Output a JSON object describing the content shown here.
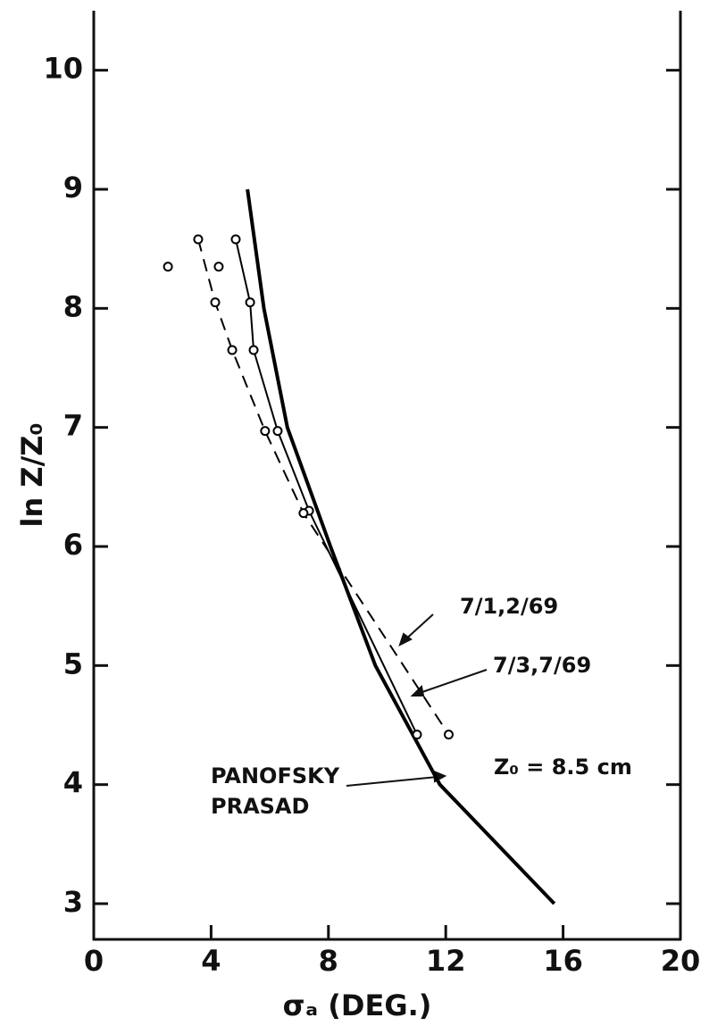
{
  "chart_data": {
    "type": "line",
    "x_label": "σₐ (DEG.)",
    "y_label": "ln Z/Z₀",
    "annotation": "Z₀ = 8.5 cm",
    "xlim": [
      0,
      20
    ],
    "xticks": [
      0,
      4,
      8,
      12,
      16,
      20
    ],
    "ylim": [
      2.7,
      10.5
    ],
    "yticks": [
      3,
      4,
      5,
      6,
      7,
      8,
      9,
      10
    ],
    "grid": false,
    "series": [
      {
        "name": "PANOFSKY PRASAD",
        "color": "#000000",
        "style": "solid-thick",
        "markers": false,
        "x": [
          5.24,
          5.8,
          6.6,
          8.07,
          9.6,
          11.8,
          15.7
        ],
        "values": [
          9,
          8,
          7,
          6,
          5,
          4,
          3
        ]
      },
      {
        "name": "7/3,7/69",
        "color": "#000000",
        "style": "solid",
        "markers": true,
        "x": [
          4.84,
          5.33,
          5.45,
          6.27,
          7.34,
          11.02
        ],
        "values": [
          8.58,
          8.05,
          7.65,
          6.97,
          6.3,
          4.42
        ]
      },
      {
        "name": "7/1,2/69",
        "color": "#000000",
        "style": "dashed",
        "markers": true,
        "x": [
          3.56,
          4.14,
          4.72,
          5.84,
          7.15,
          12.1
        ],
        "values": [
          8.58,
          8.05,
          7.65,
          6.97,
          6.28,
          4.42
        ]
      },
      {
        "color": "#000000",
        "style": "none",
        "markers": true,
        "x": [
          2.53,
          4.26
        ],
        "values": [
          8.35,
          8.35
        ]
      }
    ]
  }
}
